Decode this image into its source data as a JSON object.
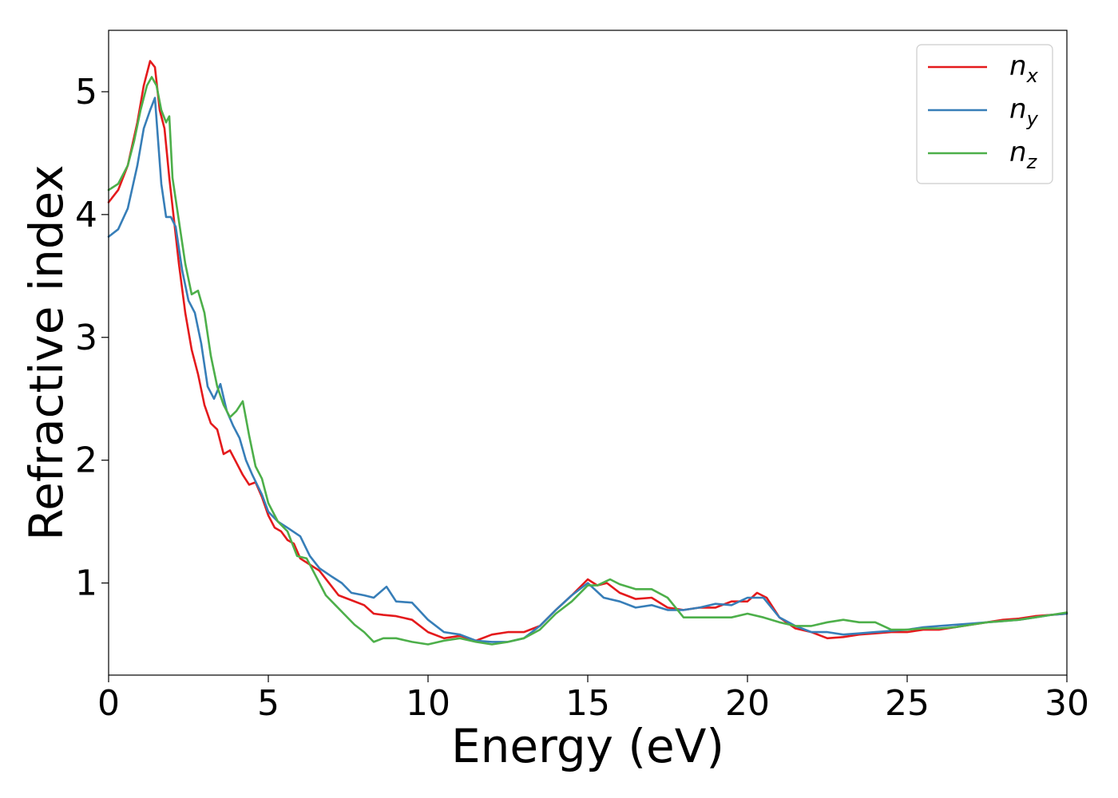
{
  "chart_data": {
    "type": "line",
    "xlabel": "Energy (eV)",
    "ylabel": "Refractive index",
    "xlim": [
      0,
      30
    ],
    "ylim": [
      0.25,
      5.5
    ],
    "xticks": [
      0,
      5,
      10,
      15,
      20,
      25,
      30
    ],
    "yticks": [
      1,
      2,
      3,
      4,
      5
    ],
    "xtick_labels": [
      "0",
      "5",
      "10",
      "15",
      "20",
      "25",
      "30"
    ],
    "ytick_labels": [
      "1",
      "2",
      "3",
      "4",
      "5"
    ],
    "grid": false,
    "legend_position": "top-right",
    "series": [
      {
        "name": "n_x",
        "label_base": "n",
        "label_sub": "x",
        "color": "#e41a1c",
        "x": [
          0,
          0.3,
          0.6,
          0.9,
          1.1,
          1.3,
          1.45,
          1.6,
          1.75,
          1.9,
          2.05,
          2.2,
          2.4,
          2.6,
          2.8,
          3.0,
          3.2,
          3.4,
          3.6,
          3.8,
          4.0,
          4.2,
          4.4,
          4.6,
          4.8,
          5.0,
          5.2,
          5.4,
          5.6,
          5.8,
          6.0,
          6.3,
          6.6,
          6.9,
          7.2,
          7.6,
          8.0,
          8.3,
          8.6,
          9.0,
          9.5,
          10.0,
          10.5,
          11.0,
          11.5,
          12.0,
          12.5,
          13.0,
          13.5,
          14.0,
          14.5,
          15.0,
          15.3,
          15.6,
          16.0,
          16.5,
          17.0,
          17.5,
          18.0,
          18.5,
          19.0,
          19.5,
          20.0,
          20.3,
          20.6,
          21.0,
          21.5,
          22.0,
          22.5,
          23.0,
          23.5,
          24.0,
          24.5,
          25.0,
          25.5,
          26.0,
          26.5,
          27.0,
          27.5,
          28.0,
          28.5,
          29.0,
          29.5,
          30.0
        ],
        "y": [
          4.1,
          4.2,
          4.4,
          4.75,
          5.05,
          5.25,
          5.2,
          4.85,
          4.7,
          4.3,
          3.95,
          3.6,
          3.2,
          2.9,
          2.7,
          2.45,
          2.3,
          2.25,
          2.05,
          2.08,
          1.98,
          1.88,
          1.8,
          1.82,
          1.7,
          1.55,
          1.45,
          1.42,
          1.35,
          1.32,
          1.2,
          1.15,
          1.1,
          1.0,
          0.9,
          0.86,
          0.82,
          0.75,
          0.74,
          0.73,
          0.7,
          0.6,
          0.55,
          0.57,
          0.53,
          0.58,
          0.6,
          0.6,
          0.65,
          0.78,
          0.9,
          1.03,
          0.98,
          1.0,
          0.92,
          0.87,
          0.88,
          0.8,
          0.78,
          0.8,
          0.8,
          0.85,
          0.85,
          0.92,
          0.88,
          0.72,
          0.63,
          0.6,
          0.55,
          0.56,
          0.58,
          0.59,
          0.6,
          0.6,
          0.62,
          0.62,
          0.64,
          0.66,
          0.68,
          0.7,
          0.71,
          0.73,
          0.74,
          0.75
        ]
      },
      {
        "name": "n_y",
        "label_base": "n",
        "label_sub": "y",
        "color": "#377eb8",
        "x": [
          0,
          0.3,
          0.6,
          0.9,
          1.1,
          1.3,
          1.45,
          1.55,
          1.65,
          1.8,
          1.95,
          2.1,
          2.3,
          2.5,
          2.7,
          2.9,
          3.1,
          3.3,
          3.5,
          3.7,
          3.9,
          4.1,
          4.3,
          4.5,
          4.8,
          5.0,
          5.3,
          5.6,
          6.0,
          6.3,
          6.6,
          7.0,
          7.3,
          7.6,
          8.0,
          8.3,
          8.7,
          9.0,
          9.5,
          10.0,
          10.5,
          11.0,
          11.5,
          12.0,
          12.5,
          13.0,
          13.5,
          14.0,
          14.5,
          15.0,
          15.5,
          16.0,
          16.5,
          17.0,
          17.5,
          18.0,
          18.5,
          19.0,
          19.5,
          20.0,
          20.5,
          21.0,
          21.5,
          22.0,
          22.5,
          23.0,
          23.5,
          24.0,
          24.5,
          25.0,
          25.5,
          26.0,
          26.5,
          27.0,
          27.5,
          28.0,
          28.5,
          29.0,
          29.5,
          30.0
        ],
        "y": [
          3.82,
          3.88,
          4.05,
          4.4,
          4.7,
          4.85,
          4.95,
          4.6,
          4.25,
          3.98,
          3.98,
          3.9,
          3.55,
          3.3,
          3.2,
          2.95,
          2.6,
          2.5,
          2.62,
          2.4,
          2.28,
          2.18,
          2.0,
          1.88,
          1.72,
          1.58,
          1.5,
          1.45,
          1.38,
          1.22,
          1.12,
          1.05,
          1.0,
          0.92,
          0.9,
          0.88,
          0.97,
          0.85,
          0.84,
          0.7,
          0.6,
          0.58,
          0.53,
          0.52,
          0.52,
          0.55,
          0.65,
          0.78,
          0.9,
          1.0,
          0.88,
          0.85,
          0.8,
          0.82,
          0.78,
          0.78,
          0.8,
          0.83,
          0.82,
          0.88,
          0.88,
          0.72,
          0.65,
          0.6,
          0.6,
          0.58,
          0.59,
          0.6,
          0.61,
          0.62,
          0.64,
          0.65,
          0.66,
          0.67,
          0.68,
          0.69,
          0.7,
          0.72,
          0.74,
          0.75
        ]
      },
      {
        "name": "n_z",
        "label_base": "n",
        "label_sub": "z",
        "color": "#4daf4a",
        "x": [
          0,
          0.3,
          0.6,
          0.8,
          1.0,
          1.2,
          1.35,
          1.5,
          1.65,
          1.8,
          1.9,
          2.0,
          2.2,
          2.4,
          2.6,
          2.8,
          3.0,
          3.2,
          3.4,
          3.6,
          3.8,
          4.0,
          4.2,
          4.4,
          4.6,
          4.8,
          5.0,
          5.3,
          5.6,
          5.9,
          6.2,
          6.5,
          6.8,
          7.1,
          7.4,
          7.7,
          8.0,
          8.3,
          8.6,
          9.0,
          9.5,
          10.0,
          10.5,
          11.0,
          11.5,
          12.0,
          12.5,
          13.0,
          13.5,
          14.0,
          14.5,
          15.0,
          15.3,
          15.7,
          16.0,
          16.5,
          17.0,
          17.5,
          18.0,
          18.5,
          19.0,
          19.5,
          20.0,
          20.5,
          21.0,
          21.5,
          22.0,
          22.5,
          23.0,
          23.5,
          24.0,
          24.5,
          25.0,
          25.5,
          26.0,
          26.5,
          27.0,
          27.5,
          28.0,
          28.5,
          29.0,
          29.5,
          30.0
        ],
        "y": [
          4.2,
          4.25,
          4.4,
          4.6,
          4.85,
          5.05,
          5.12,
          5.05,
          4.85,
          4.75,
          4.8,
          4.3,
          3.95,
          3.6,
          3.35,
          3.38,
          3.2,
          2.85,
          2.6,
          2.45,
          2.35,
          2.4,
          2.48,
          2.2,
          1.95,
          1.85,
          1.65,
          1.5,
          1.42,
          1.22,
          1.2,
          1.05,
          0.9,
          0.82,
          0.74,
          0.66,
          0.6,
          0.52,
          0.55,
          0.55,
          0.52,
          0.5,
          0.53,
          0.55,
          0.52,
          0.5,
          0.52,
          0.55,
          0.62,
          0.75,
          0.85,
          0.98,
          0.98,
          1.03,
          0.99,
          0.95,
          0.95,
          0.88,
          0.72,
          0.72,
          0.72,
          0.72,
          0.75,
          0.72,
          0.68,
          0.65,
          0.65,
          0.68,
          0.7,
          0.68,
          0.68,
          0.62,
          0.62,
          0.63,
          0.63,
          0.64,
          0.66,
          0.68,
          0.69,
          0.7,
          0.72,
          0.74,
          0.76
        ]
      }
    ]
  }
}
